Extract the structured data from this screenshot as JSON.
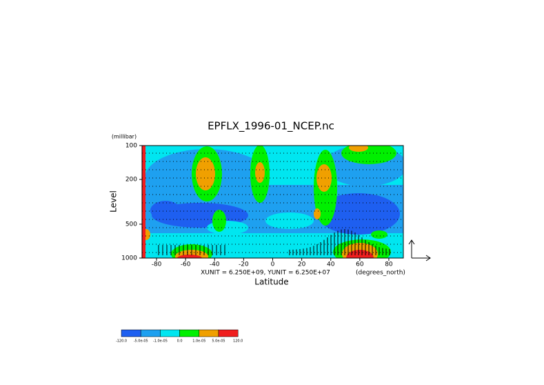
{
  "chart_data": {
    "type": "contour",
    "title": "EPFLX_1996-01_NCEP.nc",
    "y_unit": "(millibar)",
    "y_label": "Level",
    "x_label": "Latitude",
    "x_unit": "(degrees_north)",
    "annotation": "XUNIT = 6.250E+09, YUNIT = 6.250E+07",
    "xlim": [
      -90,
      90
    ],
    "xticks": [
      -80,
      -60,
      -40,
      -20,
      0,
      20,
      40,
      60,
      80
    ],
    "ylim": [
      1000,
      100
    ],
    "yticks": [
      100,
      200,
      500,
      1000
    ],
    "log_y": true,
    "levels": [
      {
        "value": -120,
        "label": "-120.0"
      },
      {
        "value": -5e-05,
        "label": "-5.0e-05"
      },
      {
        "value": -1e-05,
        "label": "-1.0e-05"
      },
      {
        "value": 0,
        "label": "0.0"
      },
      {
        "value": 1e-05,
        "label": "1.0e-05"
      },
      {
        "value": 5e-05,
        "label": "5.0e-05"
      },
      {
        "value": 120,
        "label": "120.0"
      }
    ],
    "colors": [
      "#1e5ff0",
      "#1ea0f0",
      "#00e6f0",
      "#00f000",
      "#f0a000",
      "#f01e1e"
    ]
  }
}
